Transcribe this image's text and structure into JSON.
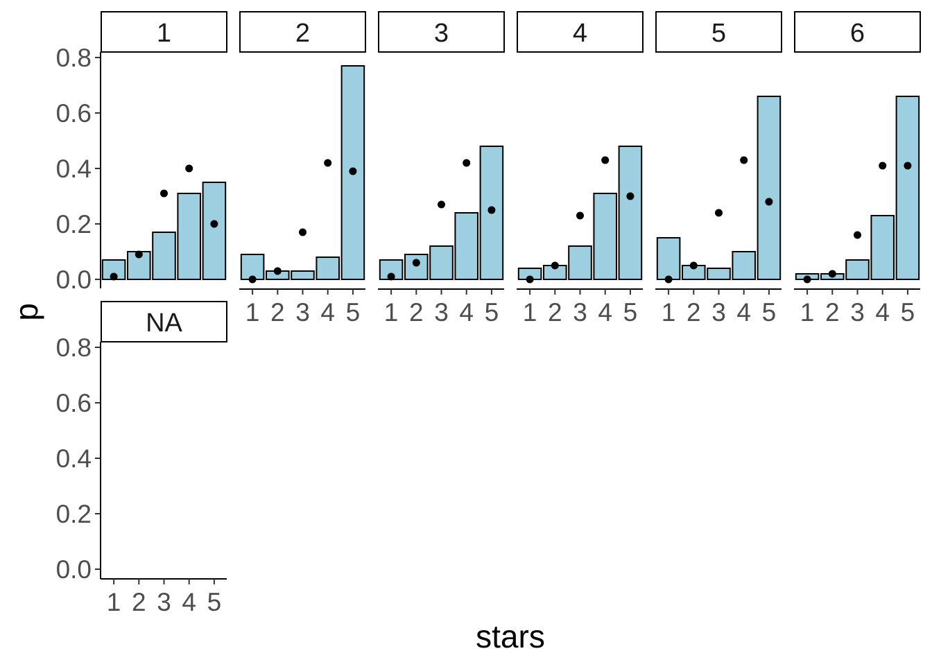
{
  "chart_data": {
    "type": "bar",
    "xlabel": "stars",
    "ylabel": "p",
    "ylim": [
      0,
      0.8
    ],
    "y_ticks": [
      "0.0",
      "0.2",
      "0.4",
      "0.6",
      "0.8"
    ],
    "categories": [
      "1",
      "2",
      "3",
      "4",
      "5"
    ],
    "bar_fill": "#9ecfe0",
    "bar_stroke": "#000000",
    "point_color": "#000000",
    "layout": "facet_wrap",
    "facets": [
      {
        "label": "1",
        "bars": [
          0.07,
          0.1,
          0.17,
          0.31,
          0.35
        ],
        "points": [
          0.01,
          0.09,
          0.31,
          0.4,
          0.2
        ]
      },
      {
        "label": "2",
        "bars": [
          0.09,
          0.03,
          0.03,
          0.08,
          0.77
        ],
        "points": [
          0.0,
          0.03,
          0.17,
          0.42,
          0.39
        ]
      },
      {
        "label": "3",
        "bars": [
          0.07,
          0.09,
          0.12,
          0.24,
          0.48
        ],
        "points": [
          0.01,
          0.06,
          0.27,
          0.42,
          0.25
        ]
      },
      {
        "label": "4",
        "bars": [
          0.04,
          0.05,
          0.12,
          0.31,
          0.48
        ],
        "points": [
          0.0,
          0.05,
          0.23,
          0.43,
          0.3
        ]
      },
      {
        "label": "5",
        "bars": [
          0.15,
          0.05,
          0.04,
          0.1,
          0.66
        ],
        "points": [
          0.0,
          0.05,
          0.24,
          0.43,
          0.28
        ]
      },
      {
        "label": "6",
        "bars": [
          0.02,
          0.02,
          0.07,
          0.23,
          0.66
        ],
        "points": [
          0.0,
          0.02,
          0.16,
          0.41,
          0.41
        ]
      },
      {
        "label": "NA",
        "bars": [],
        "points": []
      }
    ]
  }
}
